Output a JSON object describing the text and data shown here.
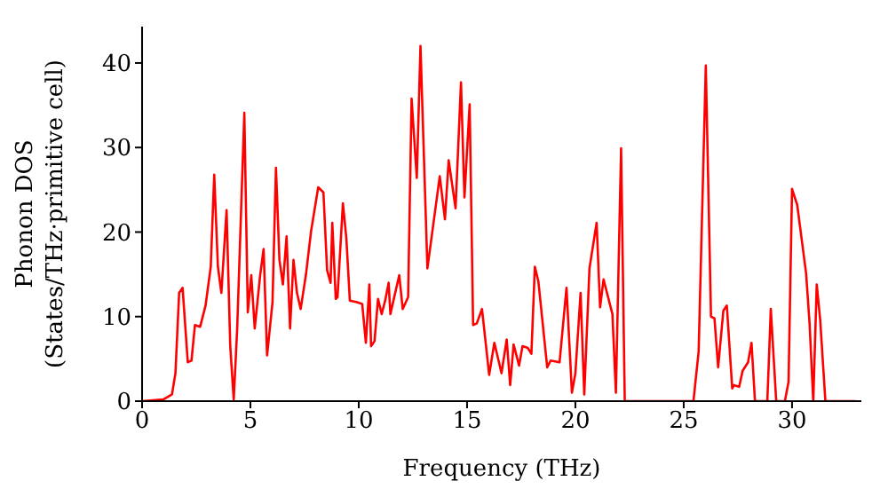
{
  "chart_data": {
    "type": "line",
    "xlabel": "Frequency (THz)",
    "ylabel": "Phonon DOS\n(States/THz·primitive cell)",
    "xlim": [
      0,
      33.2
    ],
    "ylim": [
      0,
      44.3
    ],
    "xticks": [
      0,
      5,
      10,
      15,
      20,
      25,
      30
    ],
    "yticks": [
      0,
      10,
      20,
      30,
      40
    ],
    "grid": false,
    "legend": false,
    "marker": "none",
    "line_style": "solid",
    "series": [
      {
        "color": "#ff0000",
        "x": [
          0,
          0.98,
          1.38,
          1.54,
          1.71,
          1.87,
          2.11,
          2.28,
          2.44,
          2.68,
          2.93,
          3.17,
          3.33,
          3.5,
          3.66,
          3.9,
          4.07,
          4.23,
          4.39,
          4.72,
          4.88,
          5.04,
          5.2,
          5.45,
          5.61,
          5.77,
          6.02,
          6.18,
          6.34,
          6.5,
          6.67,
          6.83,
          6.99,
          7.15,
          7.32,
          7.56,
          7.8,
          8.13,
          8.37,
          8.54,
          8.7,
          8.78,
          8.94,
          9.02,
          9.27,
          9.43,
          9.59,
          9.92,
          10.16,
          10.33,
          10.49,
          10.57,
          10.73,
          10.89,
          11.06,
          11.22,
          11.38,
          11.46,
          11.87,
          12.03,
          12.28,
          12.44,
          12.68,
          12.85,
          13.17,
          13.74,
          13.98,
          14.15,
          14.47,
          14.72,
          14.88,
          15.12,
          15.28,
          15.45,
          15.69,
          16.02,
          16.26,
          16.59,
          16.83,
          16.99,
          17.15,
          17.4,
          17.56,
          17.8,
          17.97,
          18.13,
          18.29,
          18.7,
          18.86,
          19.27,
          19.59,
          19.84,
          20,
          20.24,
          20.41,
          20.65,
          20.98,
          21.14,
          21.3,
          21.71,
          21.87,
          22.11,
          22.28,
          25.45,
          25.69,
          26.02,
          26.26,
          26.42,
          26.59,
          26.83,
          26.99,
          27.24,
          27.32,
          27.56,
          27.72,
          27.97,
          28.13,
          28.29,
          28.86,
          29.02,
          29.27,
          29.67,
          29.84,
          30,
          30.24,
          30.65,
          30.81,
          30.98,
          31.14,
          31.3,
          31.54,
          32.93
        ],
        "values": [
          0,
          0.2,
          0.8,
          3.3,
          12.8,
          13.4,
          4.6,
          4.8,
          9,
          8.8,
          11.3,
          15.9,
          26.8,
          15.9,
          12.8,
          22.6,
          6.5,
          0.2,
          8.6,
          34.1,
          10.5,
          14.9,
          8.6,
          14.9,
          18,
          5.4,
          11.7,
          27.6,
          16.7,
          13.8,
          19.5,
          8.6,
          16.7,
          12.8,
          10.9,
          14.9,
          20.1,
          25.3,
          24.7,
          15.5,
          14,
          21.1,
          12.1,
          12.3,
          23.4,
          19.2,
          11.9,
          11.7,
          11.5,
          6.9,
          13.8,
          6.5,
          7.1,
          12.1,
          10.3,
          11.9,
          14,
          10.3,
          14.9,
          10.9,
          12.3,
          35.8,
          26.4,
          42,
          15.7,
          26.6,
          21.5,
          28.5,
          22.8,
          37.7,
          24.1,
          35.1,
          9,
          9.2,
          10.9,
          3.1,
          6.9,
          3.3,
          7.3,
          1.9,
          6.7,
          4.2,
          6.5,
          6.3,
          5.6,
          15.9,
          14.2,
          4,
          4.8,
          4.6,
          13.4,
          1,
          3.3,
          12.8,
          0.8,
          15.7,
          21.1,
          11.1,
          14.4,
          10.3,
          1,
          29.9,
          0,
          0,
          5.9,
          39.7,
          10,
          9.8,
          4,
          10.7,
          11.3,
          1.5,
          1.9,
          1.7,
          3.6,
          4.6,
          6.9,
          0,
          0,
          10.9,
          0,
          0,
          2.3,
          25.1,
          23.2,
          15.1,
          9.2,
          0,
          13.8,
          9.6,
          0,
          0
        ]
      }
    ]
  }
}
